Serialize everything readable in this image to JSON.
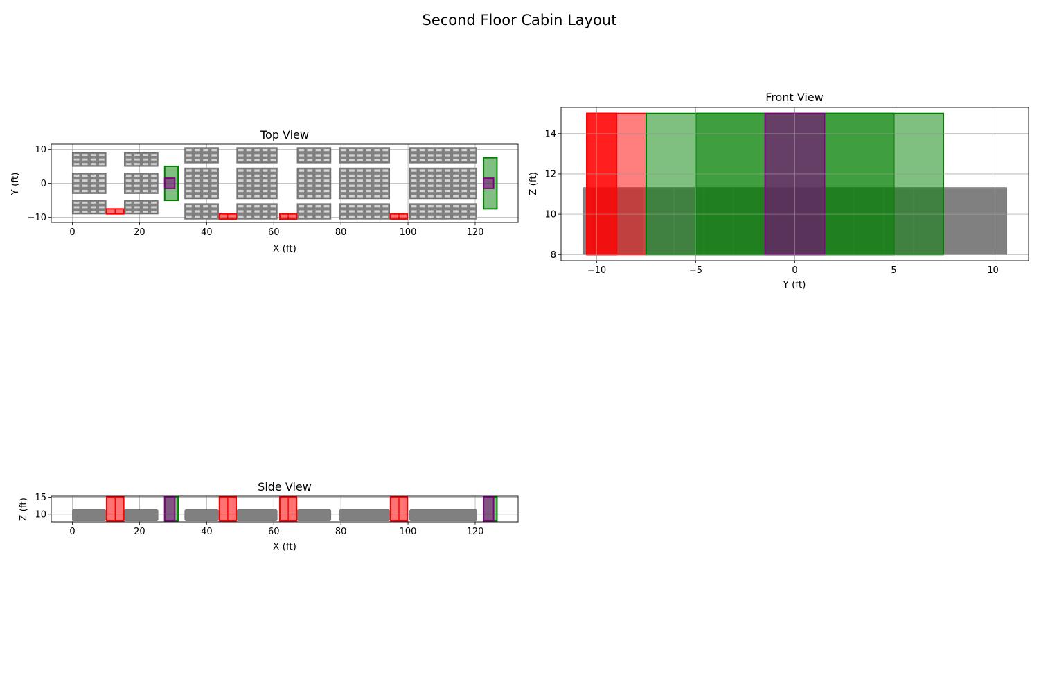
{
  "title": "Second Floor Cabin Layout",
  "colors": {
    "seat": "#808080",
    "lavatory": "#ff0000",
    "galley": "#008000",
    "stairs": "#800080",
    "grid": "#b0b0b0"
  },
  "chart_data": [
    {
      "id": "top",
      "type": "layout",
      "title": "Top View",
      "xlabel": "X (ft)",
      "ylabel": "Y (ft)",
      "xlim": [
        -6.3,
        132.8
      ],
      "ylim": [
        -11.5,
        11.5
      ],
      "xticks": [
        0,
        20,
        40,
        60,
        80,
        100,
        120
      ],
      "yticks": [
        -10,
        0,
        10
      ],
      "grid": true,
      "seat_rows": [
        {
          "name": "left-outer",
          "y": [
            -9,
            -5
          ],
          "sections": [
            {
              "x": [
                0,
                10
              ],
              "n": 4
            },
            {
              "x": [
                15.5,
                25.5
              ],
              "n": 4
            }
          ]
        },
        {
          "name": "left-center",
          "y": [
            -3,
            3
          ],
          "sections": [
            {
              "x": [
                0,
                10
              ],
              "n": 4
            },
            {
              "x": [
                15.5,
                25.5
              ],
              "n": 4
            }
          ]
        },
        {
          "name": "left-upper",
          "y": [
            5,
            9
          ],
          "sections": [
            {
              "x": [
                0,
                10
              ],
              "n": 4
            },
            {
              "x": [
                15.5,
                25.5
              ],
              "n": 4
            }
          ]
        },
        {
          "name": "right-outer",
          "y": [
            -10.5,
            -6
          ],
          "sections": [
            {
              "x": [
                33.5,
                43.5
              ],
              "n": 4
            },
            {
              "x": [
                49,
                61
              ],
              "n": 5
            },
            {
              "x": [
                67,
                77
              ],
              "n": 4
            },
            {
              "x": [
                79.5,
                94.5
              ],
              "n": 6
            },
            {
              "x": [
                100.5,
                120.5
              ],
              "n": 8
            }
          ]
        },
        {
          "name": "right-center",
          "y": [
            -4.5,
            4.5
          ],
          "sections": [
            {
              "x": [
                33.5,
                43.5
              ],
              "n": 4
            },
            {
              "x": [
                49,
                61
              ],
              "n": 5
            },
            {
              "x": [
                67,
                77
              ],
              "n": 4
            },
            {
              "x": [
                79.5,
                94.5
              ],
              "n": 6
            },
            {
              "x": [
                100.5,
                120.5
              ],
              "n": 8
            }
          ]
        },
        {
          "name": "right-upper",
          "y": [
            6,
            10.5
          ],
          "sections": [
            {
              "x": [
                33.5,
                43.5
              ],
              "n": 4
            },
            {
              "x": [
                49,
                61
              ],
              "n": 5
            },
            {
              "x": [
                67,
                77
              ],
              "n": 4
            },
            {
              "x": [
                79.5,
                94.5
              ],
              "n": 6
            },
            {
              "x": [
                100.5,
                120.5
              ],
              "n": 8
            }
          ]
        }
      ],
      "lavatories": [
        {
          "x": [
            10.2,
            15.3
          ],
          "y": [
            -9,
            -7.5
          ]
        },
        {
          "x": [
            43.8,
            48.8
          ],
          "y": [
            -10.5,
            -9
          ]
        },
        {
          "x": [
            61.8,
            66.8
          ],
          "y": [
            -10.5,
            -9
          ]
        },
        {
          "x": [
            94.8,
            99.8
          ],
          "y": [
            -10.5,
            -9
          ]
        }
      ],
      "galleys": [
        {
          "x": [
            27.5,
            31.5
          ],
          "y": [
            -5,
            5
          ]
        },
        {
          "x": [
            122.5,
            126.5
          ],
          "y": [
            -7.5,
            7.5
          ]
        }
      ],
      "stairs": [
        {
          "x": [
            27.5,
            30.5
          ],
          "y": [
            -1.5,
            1.5
          ]
        },
        {
          "x": [
            122.5,
            125.5
          ],
          "y": [
            -1.5,
            1.5
          ]
        }
      ]
    },
    {
      "id": "front",
      "type": "layout",
      "title": "Front View",
      "xlabel": "Y (ft)",
      "ylabel": "Z (ft)",
      "xlim": [
        -11.8,
        11.8
      ],
      "ylim": [
        7.7,
        15.3
      ],
      "xticks": [
        -10,
        -5,
        0,
        5,
        10
      ],
      "yticks": [
        8,
        10,
        12,
        14
      ],
      "grid": true,
      "seat_blocks": [
        {
          "y": [
            -10.7,
            10.7
          ],
          "z": [
            8,
            11.3
          ]
        }
      ],
      "seat_dividers": [
        -9.2,
        -7.6,
        -6.1,
        -4.6,
        -3.1,
        -1.5,
        0,
        1.5,
        3.0,
        4.5,
        6.0,
        7.5
      ],
      "lavatories": [
        {
          "y": [
            -10.5,
            -9
          ],
          "z": [
            8,
            15
          ]
        },
        {
          "y": [
            -10.5,
            -7.5
          ],
          "z": [
            8,
            15
          ]
        },
        {
          "y": [
            -10.5,
            -9
          ],
          "z": [
            8,
            15
          ]
        }
      ],
      "galleys": [
        {
          "y": [
            -7.5,
            7.5
          ],
          "z": [
            8,
            15
          ]
        },
        {
          "y": [
            -5,
            5
          ],
          "z": [
            8,
            15
          ]
        }
      ],
      "stairs": [
        {
          "y": [
            -1.5,
            1.5
          ],
          "z": [
            8,
            15
          ]
        }
      ]
    },
    {
      "id": "side",
      "type": "layout",
      "title": "Side View",
      "xlabel": "X (ft)",
      "ylabel": "Z (ft)",
      "xlim": [
        -6.3,
        132.8
      ],
      "ylim": [
        7.7,
        15.3
      ],
      "xticks": [
        0,
        20,
        40,
        60,
        80,
        100,
        120
      ],
      "yticks": [
        10,
        15
      ],
      "grid": true,
      "seat_sections": [
        {
          "x": [
            0,
            10
          ]
        },
        {
          "x": [
            15.5,
            25.5
          ]
        },
        {
          "x": [
            33.5,
            43.5
          ]
        },
        {
          "x": [
            49,
            61
          ]
        },
        {
          "x": [
            67,
            77
          ]
        },
        {
          "x": [
            79.5,
            94.5
          ]
        },
        {
          "x": [
            100.5,
            120.5
          ]
        }
      ],
      "seat_z": [
        8,
        11.3
      ],
      "lavatories": [
        {
          "x": [
            10.2,
            15.3
          ],
          "z": [
            8,
            15
          ]
        },
        {
          "x": [
            43.8,
            48.8
          ],
          "z": [
            8,
            15
          ]
        },
        {
          "x": [
            61.8,
            66.8
          ],
          "z": [
            8,
            15
          ]
        },
        {
          "x": [
            94.8,
            99.8
          ],
          "z": [
            8,
            15
          ]
        }
      ],
      "galleys": [
        {
          "x": [
            27.5,
            31.5
          ],
          "z": [
            8,
            15
          ]
        },
        {
          "x": [
            122.5,
            126.5
          ],
          "z": [
            8,
            15
          ]
        }
      ],
      "stairs": [
        {
          "x": [
            27.5,
            30.5
          ],
          "z": [
            8,
            15
          ]
        },
        {
          "x": [
            122.5,
            125.5
          ],
          "z": [
            8,
            15
          ]
        }
      ]
    }
  ]
}
